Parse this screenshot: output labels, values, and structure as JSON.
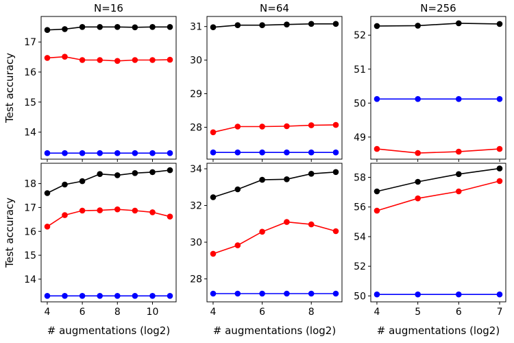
{
  "chart_data": [
    {
      "type": "line",
      "title": "N=16",
      "ylabel": "Test accuracy",
      "xlabel": "",
      "x": [
        4,
        5,
        6,
        7,
        8,
        9,
        10,
        11
      ],
      "xticks": [
        4,
        6,
        8,
        10
      ],
      "xlim": [
        3.65,
        11.35
      ],
      "yticks": [
        14,
        15,
        16,
        17
      ],
      "ylim": [
        13.1,
        17.85
      ],
      "series": [
        {
          "color": "#000000",
          "values": [
            17.4,
            17.43,
            17.5,
            17.5,
            17.5,
            17.49,
            17.5,
            17.5
          ]
        },
        {
          "color": "#ff0000",
          "values": [
            16.47,
            16.51,
            16.4,
            16.4,
            16.37,
            16.4,
            16.4,
            16.41
          ]
        },
        {
          "color": "#0000ff",
          "values": [
            13.3,
            13.3,
            13.3,
            13.3,
            13.3,
            13.3,
            13.3,
            13.3
          ]
        }
      ]
    },
    {
      "type": "line",
      "title": "N=64",
      "ylabel": "",
      "xlabel": "",
      "x": [
        4,
        5,
        6,
        7,
        8,
        9
      ],
      "xticks": [
        4,
        6,
        8
      ],
      "xlim": [
        3.75,
        9.25
      ],
      "yticks": [
        28,
        29,
        30,
        31
      ],
      "ylim": [
        27.05,
        31.3
      ],
      "series": [
        {
          "color": "#000000",
          "values": [
            30.98,
            31.04,
            31.04,
            31.06,
            31.08,
            31.08
          ]
        },
        {
          "color": "#ff0000",
          "values": [
            27.85,
            28.02,
            28.02,
            28.03,
            28.06,
            28.07
          ]
        },
        {
          "color": "#0000ff",
          "values": [
            27.25,
            27.25,
            27.25,
            27.25,
            27.25,
            27.25
          ]
        }
      ]
    },
    {
      "type": "line",
      "title": "N=256",
      "ylabel": "",
      "xlabel": "",
      "x": [
        4,
        5,
        6,
        7
      ],
      "xticks": [
        4,
        5,
        6,
        7
      ],
      "xlim": [
        3.85,
        7.15
      ],
      "yticks": [
        49,
        50,
        51,
        52
      ],
      "ylim": [
        48.35,
        52.55
      ],
      "series": [
        {
          "color": "#000000",
          "values": [
            52.27,
            52.28,
            52.35,
            52.33
          ]
        },
        {
          "color": "#ff0000",
          "values": [
            48.65,
            48.53,
            48.57,
            48.65
          ]
        },
        {
          "color": "#0000ff",
          "values": [
            50.12,
            50.12,
            50.12,
            50.12
          ]
        }
      ]
    },
    {
      "type": "line",
      "title": "",
      "ylabel": "Test accuracy",
      "xlabel": "# augmentations (log2)",
      "x": [
        4,
        5,
        6,
        7,
        8,
        9,
        10,
        11
      ],
      "xticks": [
        4,
        6,
        8,
        10
      ],
      "xlim": [
        3.65,
        11.35
      ],
      "yticks": [
        14,
        15,
        16,
        17,
        18
      ],
      "ylim": [
        13.05,
        18.85
      ],
      "series": [
        {
          "color": "#000000",
          "values": [
            17.6,
            17.96,
            18.1,
            18.4,
            18.35,
            18.44,
            18.48,
            18.56
          ]
        },
        {
          "color": "#ff0000",
          "values": [
            16.2,
            16.68,
            16.87,
            16.88,
            16.92,
            16.87,
            16.8,
            16.62
          ]
        },
        {
          "color": "#0000ff",
          "values": [
            13.3,
            13.3,
            13.3,
            13.3,
            13.3,
            13.3,
            13.3,
            13.3
          ]
        }
      ]
    },
    {
      "type": "line",
      "title": "",
      "ylabel": "",
      "xlabel": "# augmentations (log2)",
      "x": [
        4,
        5,
        6,
        7,
        8,
        9
      ],
      "xticks": [
        4,
        6,
        8
      ],
      "xlim": [
        3.75,
        9.25
      ],
      "yticks": [
        28,
        30,
        32,
        34
      ],
      "ylim": [
        26.75,
        34.3
      ],
      "series": [
        {
          "color": "#000000",
          "values": [
            32.45,
            32.88,
            33.4,
            33.43,
            33.73,
            33.82
          ]
        },
        {
          "color": "#ff0000",
          "values": [
            29.37,
            29.83,
            30.57,
            31.1,
            30.97,
            30.6
          ]
        },
        {
          "color": "#0000ff",
          "values": [
            27.2,
            27.2,
            27.2,
            27.2,
            27.2,
            27.2
          ]
        }
      ]
    },
    {
      "type": "line",
      "title": "",
      "ylabel": "",
      "xlabel": "# augmentations (log2)",
      "x": [
        4,
        5,
        6,
        7
      ],
      "xticks": [
        4,
        5,
        6,
        7
      ],
      "xlim": [
        3.85,
        7.15
      ],
      "yticks": [
        50,
        52,
        54,
        56,
        58
      ],
      "ylim": [
        49.6,
        58.95
      ],
      "series": [
        {
          "color": "#000000",
          "values": [
            57.05,
            57.7,
            58.22,
            58.6
          ]
        },
        {
          "color": "#ff0000",
          "values": [
            55.75,
            56.58,
            57.05,
            57.75
          ]
        },
        {
          "color": "#0000ff",
          "values": [
            50.1,
            50.1,
            50.1,
            50.1
          ]
        }
      ]
    }
  ]
}
